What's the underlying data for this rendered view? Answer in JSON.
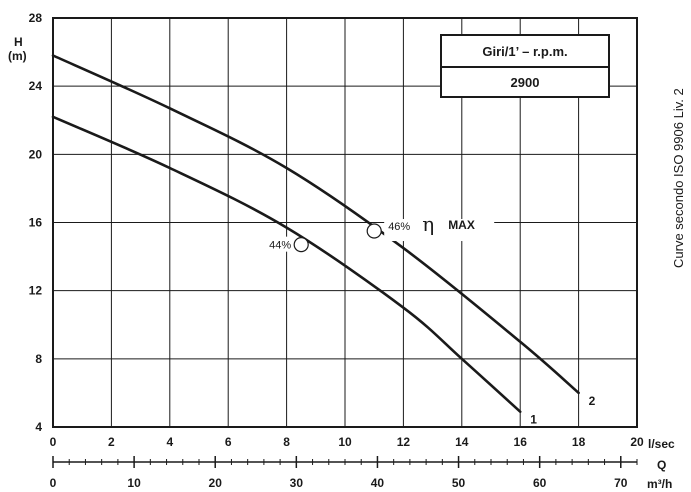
{
  "chart_data": {
    "type": "line",
    "y_axis": {
      "label": "H",
      "unit": "(m)",
      "ticks": [
        4,
        8,
        12,
        16,
        20,
        24,
        28
      ],
      "range": [
        4,
        28
      ]
    },
    "x_axis_lsec": {
      "unit": "l/sec",
      "ticks": [
        0,
        2,
        4,
        6,
        8,
        10,
        12,
        14,
        16,
        18,
        20
      ],
      "range": [
        0,
        20
      ]
    },
    "x_axis_m3h": {
      "label": "Q",
      "unit": "m³/h",
      "ticks": [
        0,
        10,
        20,
        30,
        40,
        50,
        60,
        70
      ],
      "range": [
        0,
        72
      ]
    },
    "grid": true,
    "series": [
      {
        "name": "1",
        "x": [
          0,
          4,
          8,
          12,
          14,
          16
        ],
        "y": [
          22.2,
          19.2,
          15.7,
          11.0,
          8.0,
          4.9
        ]
      },
      {
        "name": "2",
        "x": [
          0,
          4,
          8,
          12,
          16,
          18
        ],
        "y": [
          25.8,
          22.7,
          19.2,
          14.5,
          9.0,
          6.0
        ]
      }
    ],
    "annotations": {
      "point_1": {
        "x": 8.5,
        "y": 14.7,
        "label": "44%"
      },
      "point_2": {
        "x": 11.0,
        "y": 15.5,
        "label": "46%"
      },
      "eta": "η",
      "max_label": "MAX"
    },
    "speed_box": {
      "header": "Giri/1’ – r.p.m.",
      "value": "2900"
    },
    "side_note": "Curve secondo ISO 9906 Liv. 2"
  }
}
